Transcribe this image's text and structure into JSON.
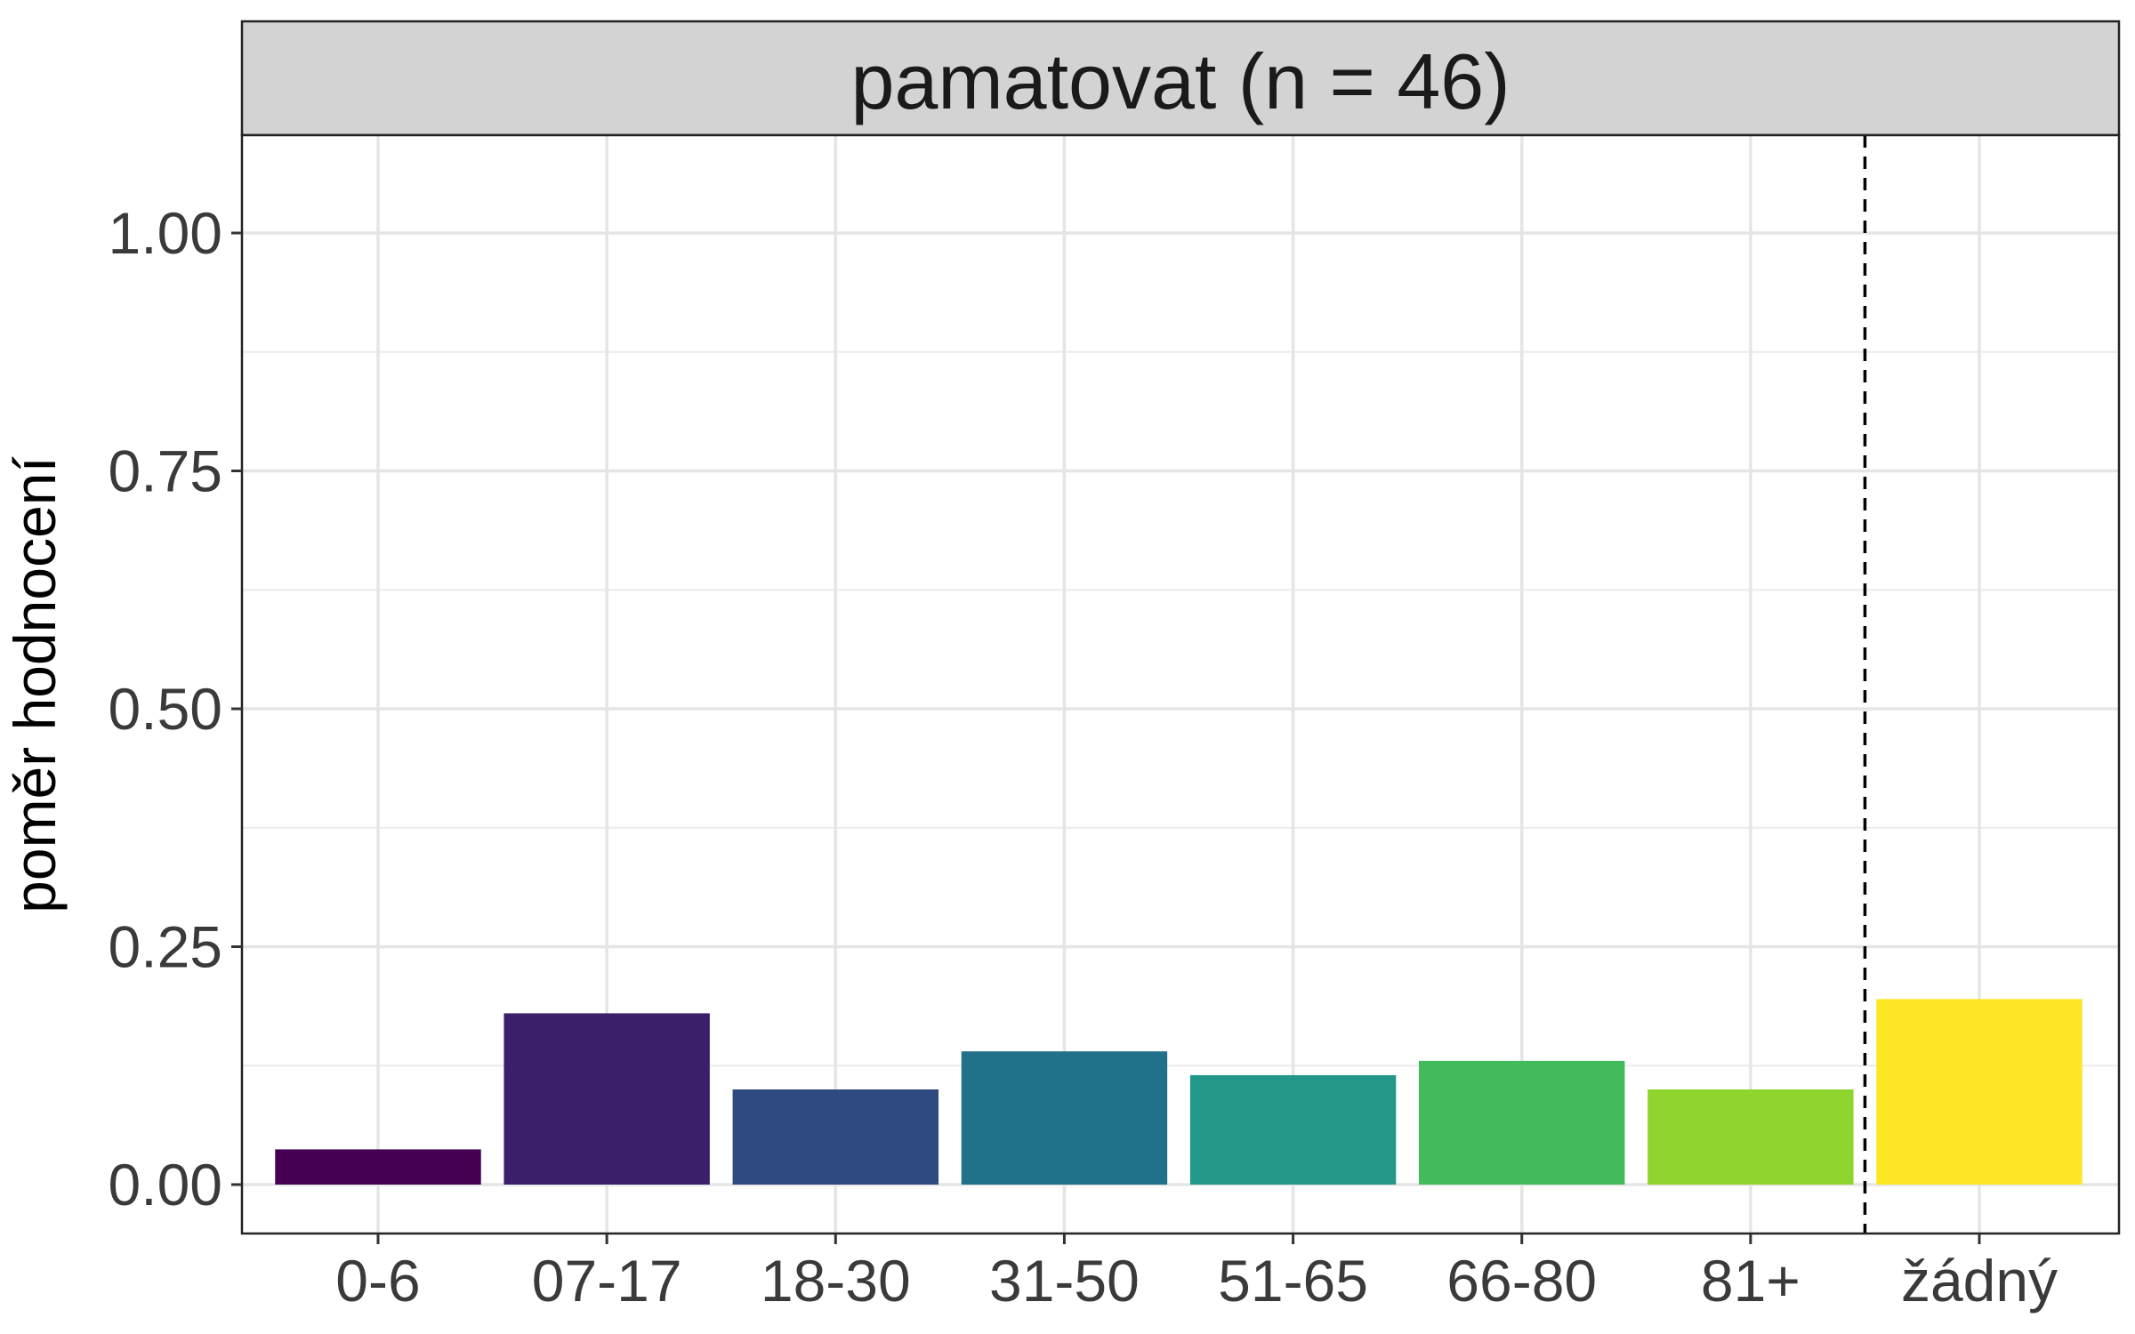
{
  "chart_data": {
    "type": "bar",
    "title": "pamatovat (n = 46)",
    "xlabel": "",
    "ylabel": "poměr hodnocení",
    "categories": [
      "0-6",
      "07-17",
      "18-30",
      "31-50",
      "51-65",
      "66-80",
      "81+",
      "žádný"
    ],
    "values": [
      0.037,
      0.18,
      0.1,
      0.14,
      0.115,
      0.13,
      0.1,
      0.195
    ],
    "colors": [
      "#440154",
      "#3B1F6B",
      "#2E4A7E",
      "#21718B",
      "#22978A",
      "#43BB5C",
      "#90D52E",
      "#FDE725"
    ],
    "ylim": [
      -0.05,
      1.1
    ],
    "yticks": [
      0.0,
      0.25,
      0.5,
      0.75,
      1.0
    ],
    "ytick_labels": [
      "0.00",
      "0.25",
      "0.50",
      "0.75",
      "1.00"
    ],
    "reference_line": {
      "between": [
        "81+",
        "žádný"
      ],
      "style": "dashed"
    },
    "grid": true,
    "legend": "none"
  }
}
